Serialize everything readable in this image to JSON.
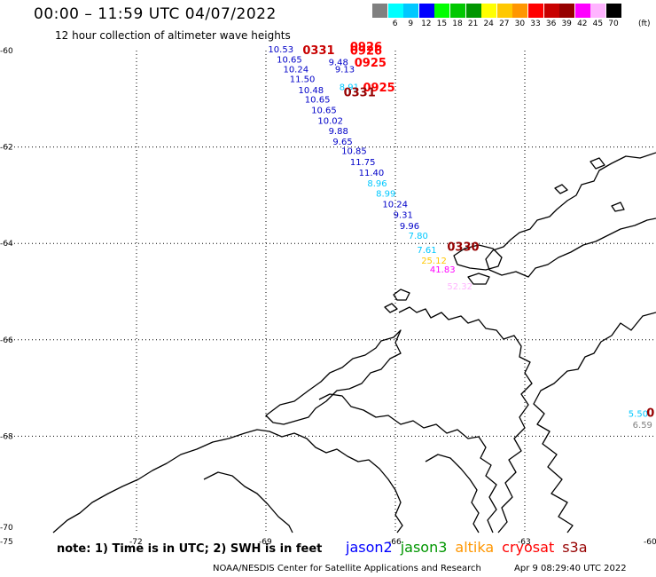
{
  "header": {
    "title": "00:00 – 11:59 UTC 04/07/2022",
    "subtitle": "12 hour collection of altimeter wave heights"
  },
  "colorbar": {
    "labels": [
      "3",
      "6",
      "9",
      "12",
      "15",
      "18",
      "21",
      "24",
      "27",
      "30",
      "33",
      "36",
      "39",
      "42",
      "45",
      "70"
    ],
    "colors": [
      "#808080",
      "#00ffff",
      "#00c8ff",
      "#0000ff",
      "#00ff00",
      "#00c800",
      "#009600",
      "#ffff00",
      "#ffc800",
      "#ff9600",
      "#ff0000",
      "#c80000",
      "#960000",
      "#ff00ff",
      "#ffb4ff",
      "#000000"
    ],
    "unit": "(ft)"
  },
  "axes": {
    "lat_labels": [
      "-60",
      "-62",
      "-64",
      "-66",
      "-68",
      "-70"
    ],
    "lon_labels": [
      "-75",
      "-72",
      "-69",
      "-66",
      "-63",
      "-60"
    ]
  },
  "map_data": {
    "lon_range": [
      -75,
      -60
    ],
    "lat_range": [
      -70,
      -60
    ],
    "points": [
      {
        "text": "10.53",
        "lon": -68.95,
        "lat": -60.04,
        "color": "#0000c8"
      },
      {
        "text": "10.65",
        "lon": -68.75,
        "lat": -60.25,
        "color": "#0000c8"
      },
      {
        "text": "9.48",
        "lon": -67.55,
        "lat": -60.3,
        "color": "#0000c8"
      },
      {
        "text": "10.24",
        "lon": -68.6,
        "lat": -60.45,
        "color": "#0000c8"
      },
      {
        "text": "9.13",
        "lon": -67.4,
        "lat": -60.45,
        "color": "#0000c8"
      },
      {
        "text": "11.50",
        "lon": -68.45,
        "lat": -60.65,
        "color": "#0000c8"
      },
      {
        "text": "8.91",
        "lon": -67.3,
        "lat": -60.82,
        "color": "#00c8ff"
      },
      {
        "text": "10.48",
        "lon": -68.25,
        "lat": -60.88,
        "color": "#0000c8"
      },
      {
        "text": "10.65",
        "lon": -68.1,
        "lat": -61.08,
        "color": "#0000c8"
      },
      {
        "text": "10.65",
        "lon": -67.95,
        "lat": -61.3,
        "color": "#0000c8"
      },
      {
        "text": "10.02",
        "lon": -67.8,
        "lat": -61.52,
        "color": "#0000c8"
      },
      {
        "text": "9.88",
        "lon": -67.55,
        "lat": -61.73,
        "color": "#0000c8"
      },
      {
        "text": "9.65",
        "lon": -67.45,
        "lat": -61.95,
        "color": "#0000c8"
      },
      {
        "text": "10.85",
        "lon": -67.25,
        "lat": -62.15,
        "color": "#0000c8"
      },
      {
        "text": "11.75",
        "lon": -67.05,
        "lat": -62.38,
        "color": "#0000c8"
      },
      {
        "text": "11.40",
        "lon": -66.85,
        "lat": -62.6,
        "color": "#0000c8"
      },
      {
        "text": "8.96",
        "lon": -66.65,
        "lat": -62.82,
        "color": "#00c8ff"
      },
      {
        "text": "8.99",
        "lon": -66.45,
        "lat": -63.03,
        "color": "#00c8ff"
      },
      {
        "text": "10.24",
        "lon": -66.3,
        "lat": -63.25,
        "color": "#0000c8"
      },
      {
        "text": "9.31",
        "lon": -66.05,
        "lat": -63.47,
        "color": "#0000c8"
      },
      {
        "text": "9.96",
        "lon": -65.9,
        "lat": -63.7,
        "color": "#0000c8"
      },
      {
        "text": "7.80",
        "lon": -65.7,
        "lat": -63.9,
        "color": "#00c8ff"
      },
      {
        "text": "7.61",
        "lon": -65.5,
        "lat": -64.2,
        "color": "#00c8ff"
      },
      {
        "text": "25.12",
        "lon": -65.4,
        "lat": -64.42,
        "color": "#ffc800"
      },
      {
        "text": "41.83",
        "lon": -65.2,
        "lat": -64.6,
        "color": "#ff00ff"
      },
      {
        "text": "52.32",
        "lon": -64.8,
        "lat": -64.95,
        "color": "#ffb4ff"
      },
      {
        "text": "5.50",
        "lon": -60.6,
        "lat": -67.6,
        "color": "#00c8ff"
      },
      {
        "text": "6.59",
        "lon": -60.5,
        "lat": -67.83,
        "color": "#808080"
      }
    ],
    "pass_times": [
      {
        "text": "0331",
        "lon": -68.15,
        "lat": -60.07,
        "color": "#c80000"
      },
      {
        "text": "0926",
        "lon": -67.05,
        "lat": -60.0,
        "color": "#ff0000"
      },
      {
        "text": "0926",
        "lon": -67.05,
        "lat": -60.08,
        "color": "#ff0000"
      },
      {
        "text": "0925",
        "lon": -66.95,
        "lat": -60.33,
        "color": "#ff0000"
      },
      {
        "text": "0925",
        "lon": -66.75,
        "lat": -60.85,
        "color": "#ff0000"
      },
      {
        "text": "0331",
        "lon": -67.2,
        "lat": -60.95,
        "color": "#960000"
      },
      {
        "text": "0330",
        "lon": -64.8,
        "lat": -64.15,
        "color": "#960000"
      },
      {
        "text": "0",
        "lon": -60.18,
        "lat": -67.6,
        "color": "#960000"
      }
    ]
  },
  "footer": {
    "note": "note: 1) Time is in UTC; 2) SWH is in feet",
    "missions": [
      {
        "name": "jason2",
        "color": "#0000ff"
      },
      {
        "name": "jason3",
        "color": "#009600"
      },
      {
        "name": "altika",
        "color": "#ff9600"
      },
      {
        "name": "cryosat",
        "color": "#ff0000"
      },
      {
        "name": "s3a",
        "color": "#960000"
      }
    ],
    "credit": "NOAA/NESDIS Center for Satellite Applications and Research",
    "timestamp": "Apr  9 08:29:40 UTC 2022"
  }
}
